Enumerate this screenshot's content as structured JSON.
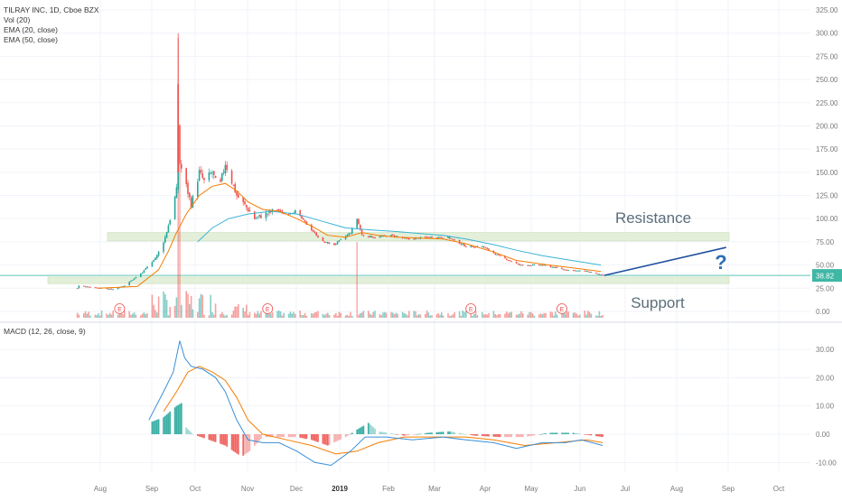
{
  "chart_data": [
    {
      "type": "candlestick",
      "title": "TILRAY INC, 1D, Cboe BZX",
      "indicators": [
        "Vol (20)",
        "EMA (20, close)",
        "EMA (50, close)"
      ],
      "x_tick_labels": [
        "Aug",
        "Sep",
        "Oct",
        "Nov",
        "Dec",
        "2019",
        "Feb",
        "Mar",
        "Apr",
        "May",
        "Jun",
        "Jul",
        "Aug",
        "Sep",
        "Oct"
      ],
      "y_tick_labels": [
        "325.00",
        "300.00",
        "275.00",
        "250.00",
        "225.00",
        "200.00",
        "175.00",
        "150.00",
        "125.00",
        "100.00",
        "75.00",
        "50.00",
        "25.00",
        "0.00"
      ],
      "ylim": [
        -8,
        330
      ],
      "last_price": "38.82",
      "price_path": [
        {
          "x": "2018-07-19",
          "y": 25
        },
        {
          "x": "2018-07-20",
          "y": 28
        },
        {
          "x": "2018-07-27",
          "y": 26
        },
        {
          "x": "2018-08-10",
          "y": 24
        },
        {
          "x": "2018-08-17",
          "y": 28
        },
        {
          "x": "2018-08-28",
          "y": 42
        },
        {
          "x": "2018-09-06",
          "y": 60
        },
        {
          "x": "2018-09-11",
          "y": 80
        },
        {
          "x": "2018-09-14",
          "y": 100
        },
        {
          "x": "2018-09-18",
          "y": 130
        },
        {
          "x": "2018-09-19",
          "y": 200
        },
        {
          "x": "2018-09-20",
          "y": 160
        },
        {
          "x": "2018-09-24",
          "y": 135
        },
        {
          "x": "2018-09-27",
          "y": 115
        },
        {
          "x": "2018-10-02",
          "y": 150
        },
        {
          "x": "2018-10-05",
          "y": 140
        },
        {
          "x": "2018-10-10",
          "y": 150
        },
        {
          "x": "2018-10-14",
          "y": 130
        },
        {
          "x": "2018-10-18",
          "y": 160
        },
        {
          "x": "2018-10-22",
          "y": 140
        },
        {
          "x": "2018-10-25",
          "y": 125
        },
        {
          "x": "2018-11-01",
          "y": 110
        },
        {
          "x": "2018-11-05",
          "y": 100
        },
        {
          "x": "2018-11-12",
          "y": 105
        },
        {
          "x": "2018-11-19",
          "y": 110
        },
        {
          "x": "2018-11-23",
          "y": 105
        },
        {
          "x": "2018-11-30",
          "y": 108
        },
        {
          "x": "2018-12-10",
          "y": 88
        },
        {
          "x": "2018-12-17",
          "y": 75
        },
        {
          "x": "2018-12-24",
          "y": 72
        },
        {
          "x": "2019-01-03",
          "y": 85
        },
        {
          "x": "2019-01-07",
          "y": 100
        },
        {
          "x": "2019-01-10",
          "y": 82
        },
        {
          "x": "2019-01-18",
          "y": 80
        },
        {
          "x": "2019-01-28",
          "y": 82
        },
        {
          "x": "2019-02-07",
          "y": 78
        },
        {
          "x": "2019-02-20",
          "y": 80
        },
        {
          "x": "2019-03-04",
          "y": 80
        },
        {
          "x": "2019-03-15",
          "y": 70
        },
        {
          "x": "2019-03-25",
          "y": 70
        },
        {
          "x": "2019-04-04",
          "y": 60
        },
        {
          "x": "2019-04-17",
          "y": 50
        },
        {
          "x": "2019-05-01",
          "y": 50
        },
        {
          "x": "2019-05-15",
          "y": 45
        },
        {
          "x": "2019-05-29",
          "y": 43
        },
        {
          "x": "2019-06-07",
          "y": 38.82
        }
      ],
      "ema20": [
        {
          "x": "2018-08-01",
          "y": 25
        },
        {
          "x": "2018-08-25",
          "y": 27
        },
        {
          "x": "2018-09-07",
          "y": 45
        },
        {
          "x": "2018-09-13",
          "y": 65
        },
        {
          "x": "2018-09-18",
          "y": 85
        },
        {
          "x": "2018-09-24",
          "y": 105
        },
        {
          "x": "2018-10-02",
          "y": 125
        },
        {
          "x": "2018-10-10",
          "y": 135
        },
        {
          "x": "2018-10-18",
          "y": 138
        },
        {
          "x": "2018-10-25",
          "y": 130
        },
        {
          "x": "2018-11-01",
          "y": 118
        },
        {
          "x": "2018-11-10",
          "y": 110
        },
        {
          "x": "2018-11-20",
          "y": 108
        },
        {
          "x": "2018-12-01",
          "y": 100
        },
        {
          "x": "2018-12-10",
          "y": 92
        },
        {
          "x": "2018-12-20",
          "y": 82
        },
        {
          "x": "2018-12-31",
          "y": 80
        },
        {
          "x": "2019-01-10",
          "y": 85
        },
        {
          "x": "2019-01-20",
          "y": 82
        },
        {
          "x": "2019-02-01",
          "y": 80
        },
        {
          "x": "2019-02-15",
          "y": 79
        },
        {
          "x": "2019-03-01",
          "y": 78
        },
        {
          "x": "2019-03-15",
          "y": 73
        },
        {
          "x": "2019-04-01",
          "y": 64
        },
        {
          "x": "2019-04-15",
          "y": 55
        },
        {
          "x": "2019-05-01",
          "y": 51
        },
        {
          "x": "2019-05-15",
          "y": 48
        },
        {
          "x": "2019-06-06",
          "y": 43
        }
      ],
      "ema50": [
        {
          "x": "2018-10-01",
          "y": 75
        },
        {
          "x": "2018-10-10",
          "y": 90
        },
        {
          "x": "2018-10-20",
          "y": 100
        },
        {
          "x": "2018-11-01",
          "y": 105
        },
        {
          "x": "2018-11-15",
          "y": 108
        },
        {
          "x": "2018-12-01",
          "y": 105
        },
        {
          "x": "2018-12-15",
          "y": 98
        },
        {
          "x": "2018-12-31",
          "y": 90
        },
        {
          "x": "2019-01-15",
          "y": 88
        },
        {
          "x": "2019-02-01",
          "y": 86
        },
        {
          "x": "2019-02-15",
          "y": 84
        },
        {
          "x": "2019-03-01",
          "y": 82
        },
        {
          "x": "2019-03-15",
          "y": 78
        },
        {
          "x": "2019-04-01",
          "y": 72
        },
        {
          "x": "2019-04-15",
          "y": 66
        },
        {
          "x": "2019-05-01",
          "y": 60
        },
        {
          "x": "2019-05-15",
          "y": 56
        },
        {
          "x": "2019-06-06",
          "y": 50
        }
      ],
      "volume_spikes": [
        {
          "x": "2018-09-19",
          "relative": 1.0,
          "direction": "down"
        },
        {
          "x": "2018-09-20",
          "relative": 0.55,
          "direction": "down"
        },
        {
          "x": "2019-01-07",
          "relative": 0.27,
          "direction": "down"
        }
      ],
      "resistance_zone": [
        76,
        85
      ],
      "support_zone": [
        30,
        37
      ],
      "projection": [
        {
          "x": "2019-06-08",
          "y": 38.82
        },
        {
          "x": "2019-08-22",
          "y": 69
        }
      ],
      "earnings_markers": [
        "2018-08-14",
        "2018-11-13",
        "2019-03-18",
        "2019-05-13"
      ],
      "annotations": {
        "resistance": "Resistance",
        "support": "Support",
        "question": "?",
        "earnings": "E"
      }
    },
    {
      "type": "macd",
      "title": "MACD (12, 26, close, 9)",
      "y_tick_labels": [
        "30.00",
        "20.00",
        "10.00",
        "0.00",
        "-10.00"
      ],
      "ylim": [
        -14,
        36
      ],
      "macd": [
        {
          "x": "2018-09-01",
          "y": 5
        },
        {
          "x": "2018-09-10",
          "y": 15
        },
        {
          "x": "2018-09-16",
          "y": 22
        },
        {
          "x": "2018-09-20",
          "y": 33
        },
        {
          "x": "2018-09-23",
          "y": 27
        },
        {
          "x": "2018-09-27",
          "y": 24
        },
        {
          "x": "2018-10-04",
          "y": 23
        },
        {
          "x": "2018-10-12",
          "y": 20
        },
        {
          "x": "2018-10-18",
          "y": 15
        },
        {
          "x": "2018-10-25",
          "y": 5
        },
        {
          "x": "2018-11-01",
          "y": -2
        },
        {
          "x": "2018-11-10",
          "y": -3
        },
        {
          "x": "2018-11-20",
          "y": -3
        },
        {
          "x": "2018-12-01",
          "y": -6
        },
        {
          "x": "2018-12-12",
          "y": -10
        },
        {
          "x": "2018-12-22",
          "y": -11
        },
        {
          "x": "2019-01-03",
          "y": -6
        },
        {
          "x": "2019-01-12",
          "y": -1
        },
        {
          "x": "2019-01-25",
          "y": -1
        },
        {
          "x": "2019-02-10",
          "y": -2
        },
        {
          "x": "2019-03-01",
          "y": -1
        },
        {
          "x": "2019-03-15",
          "y": -2
        },
        {
          "x": "2019-04-01",
          "y": -3
        },
        {
          "x": "2019-04-15",
          "y": -5
        },
        {
          "x": "2019-05-01",
          "y": -3
        },
        {
          "x": "2019-05-15",
          "y": -3
        },
        {
          "x": "2019-05-25",
          "y": -2
        },
        {
          "x": "2019-06-07",
          "y": -4
        }
      ],
      "signal": [
        {
          "x": "2018-09-10",
          "y": 8
        },
        {
          "x": "2018-09-18",
          "y": 15
        },
        {
          "x": "2018-09-25",
          "y": 22
        },
        {
          "x": "2018-10-02",
          "y": 24
        },
        {
          "x": "2018-10-10",
          "y": 22
        },
        {
          "x": "2018-10-18",
          "y": 19
        },
        {
          "x": "2018-10-25",
          "y": 13
        },
        {
          "x": "2018-11-01",
          "y": 5
        },
        {
          "x": "2018-11-10",
          "y": 0
        },
        {
          "x": "2018-11-25",
          "y": -2
        },
        {
          "x": "2018-12-10",
          "y": -4
        },
        {
          "x": "2018-12-25",
          "y": -7
        },
        {
          "x": "2019-01-07",
          "y": -6
        },
        {
          "x": "2019-01-20",
          "y": -3
        },
        {
          "x": "2019-02-05",
          "y": -1
        },
        {
          "x": "2019-02-25",
          "y": -1
        },
        {
          "x": "2019-03-15",
          "y": -1
        },
        {
          "x": "2019-04-01",
          "y": -2
        },
        {
          "x": "2019-04-20",
          "y": -4
        },
        {
          "x": "2019-05-10",
          "y": -3
        },
        {
          "x": "2019-05-28",
          "y": -2
        },
        {
          "x": "2019-06-07",
          "y": -3
        }
      ],
      "histogram_envelope": [
        {
          "x": "2018-09-01",
          "y": 4
        },
        {
          "x": "2018-09-10",
          "y": 6
        },
        {
          "x": "2018-09-18",
          "y": 10
        },
        {
          "x": "2018-09-21",
          "y": 11
        },
        {
          "x": "2018-09-23",
          "y": 3
        },
        {
          "x": "2018-09-28",
          "y": 0
        },
        {
          "x": "2018-10-08",
          "y": -2
        },
        {
          "x": "2018-10-18",
          "y": -4
        },
        {
          "x": "2018-10-28",
          "y": -8
        },
        {
          "x": "2018-11-02",
          "y": -6
        },
        {
          "x": "2018-11-10",
          "y": -1
        },
        {
          "x": "2018-11-20",
          "y": -1
        },
        {
          "x": "2018-12-01",
          "y": -1
        },
        {
          "x": "2018-12-10",
          "y": -2
        },
        {
          "x": "2018-12-20",
          "y": -4
        },
        {
          "x": "2018-12-31",
          "y": -1
        },
        {
          "x": "2019-01-08",
          "y": 2
        },
        {
          "x": "2019-01-14",
          "y": 4
        },
        {
          "x": "2019-01-20",
          "y": 1
        },
        {
          "x": "2019-02-05",
          "y": -0.5
        },
        {
          "x": "2019-02-20",
          "y": 0.5
        },
        {
          "x": "2019-03-05",
          "y": 1
        },
        {
          "x": "2019-03-20",
          "y": -0.5
        },
        {
          "x": "2019-04-05",
          "y": -1
        },
        {
          "x": "2019-04-20",
          "y": -1
        },
        {
          "x": "2019-05-05",
          "y": 0.5
        },
        {
          "x": "2019-05-20",
          "y": 0.5
        },
        {
          "x": "2019-06-07",
          "y": -1
        }
      ]
    }
  ],
  "colors": {
    "up": "#26a69a",
    "down": "#ef5350",
    "ema20": "#f57c00",
    "ema50": "#3bb3d6",
    "macd": "#3a8fd8",
    "signal": "#f57c00",
    "zone_fill": "#e3efd9",
    "zone_stroke": "#c6dcb4",
    "support_line": "#5fc4b4",
    "projection": "#1f4fa0",
    "question": "#2d6fb4",
    "annotation_text": "#5a6e7a",
    "grid": "#f0f3fa",
    "axis_text": "#7a7a7a",
    "divider": "#d8dbe3",
    "price_label_bg": "#3fb7a5",
    "earnings": "#ee4e4e"
  }
}
